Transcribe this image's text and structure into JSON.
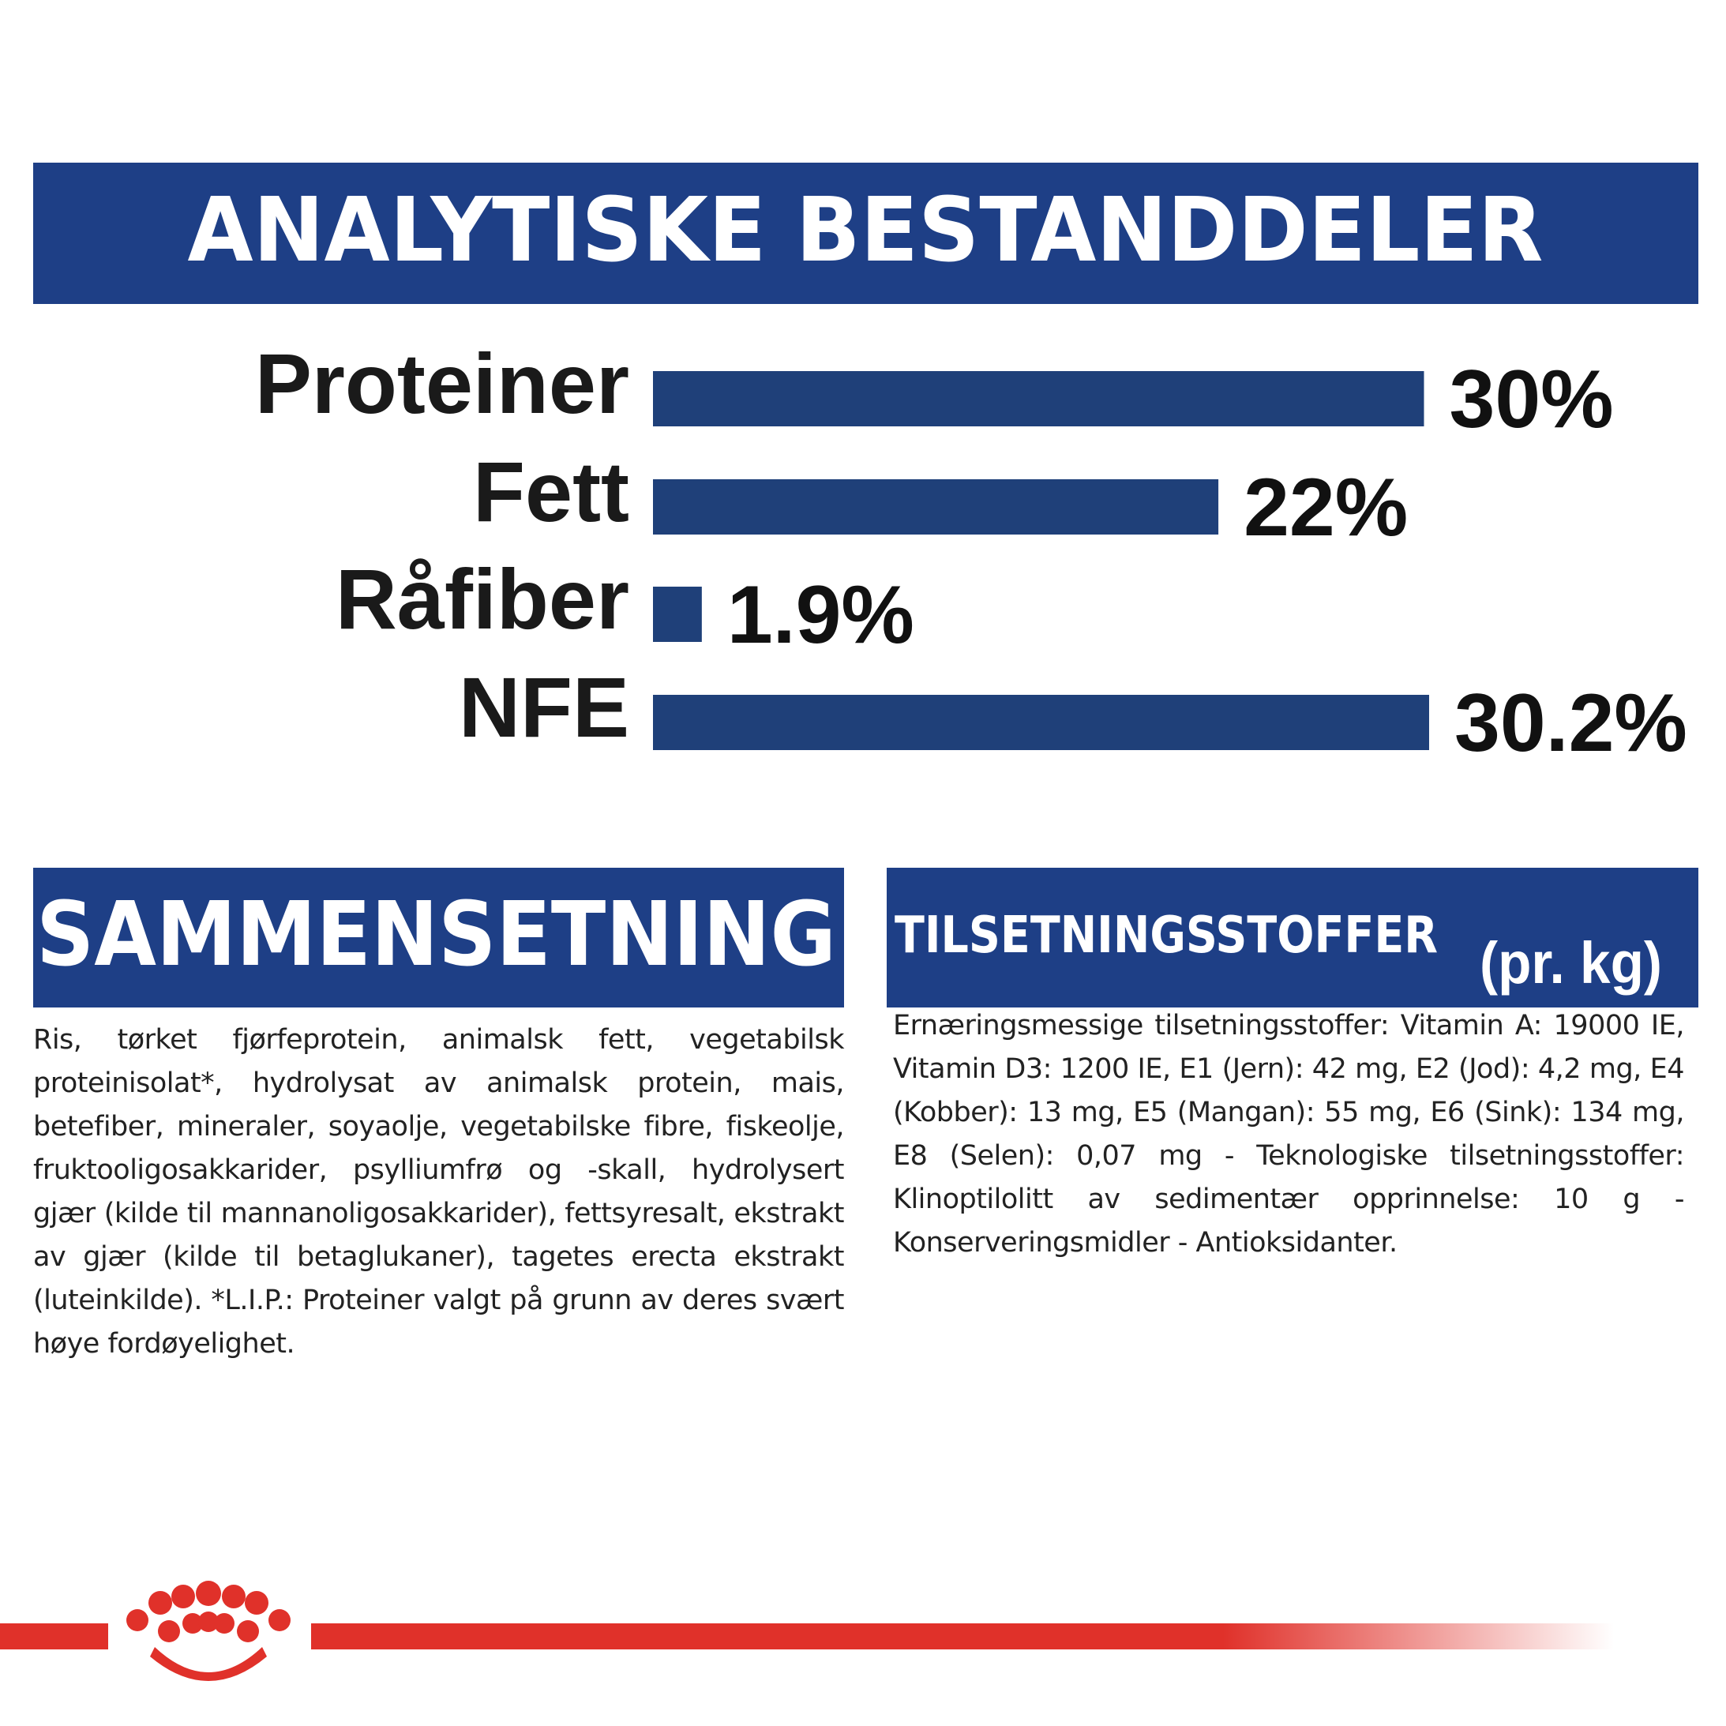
{
  "chart_data": {
    "type": "bar",
    "orientation": "horizontal",
    "title": "ANALYTISKE BESTANDDELER",
    "categories": [
      "Proteiner",
      "Fett",
      "Råfiber",
      "NFE"
    ],
    "values": [
      30,
      22,
      1.9,
      30.2
    ],
    "value_labels": [
      "30%",
      "22%",
      "1.9%",
      "30.2%"
    ],
    "color": "#1f4079"
  },
  "composition": {
    "title": "SAMMENSETNING",
    "text": "Ris, tørket fjørfeprotein, animalsk fett, vegetabilsk proteinisolat*, hydrolysat av animalsk protein, mais, betefiber, mineraler, soyaolje, vegetabilske fibre, fiskeolje, fruktooligosakkarider, psylliumfrø og -skall, hydrolysert gjær (kilde til mannanoligosakkarider), fettsyresalt, ekstrakt av gjær (kilde til betaglukaner), tagetes erecta ekstrakt (luteinkilde). *L.I.P.: Proteiner valgt på grunn av deres svært høye fordøyelighet."
  },
  "additives": {
    "title": "TILSETNINGSSTOFFER",
    "unit": "(pr. kg)",
    "text": "Ernæringsmessige tilsetningsstoffer: Vitamin A: 19000 IE, Vitamin D3: 1200 IE, E1 (Jern): 42 mg, E2 (Jod): 4,2 mg, E4 (Kobber): 13 mg, E5 (Mangan): 55 mg, E6 (Sink): 134 mg, E8 (Selen): 0,07 mg - Teknologiske tilsetningsstoffer: Klinoptilolitt av sedimentær opprinnelse: 10 g - Konserveringsmidler - Antioksidanter."
  }
}
